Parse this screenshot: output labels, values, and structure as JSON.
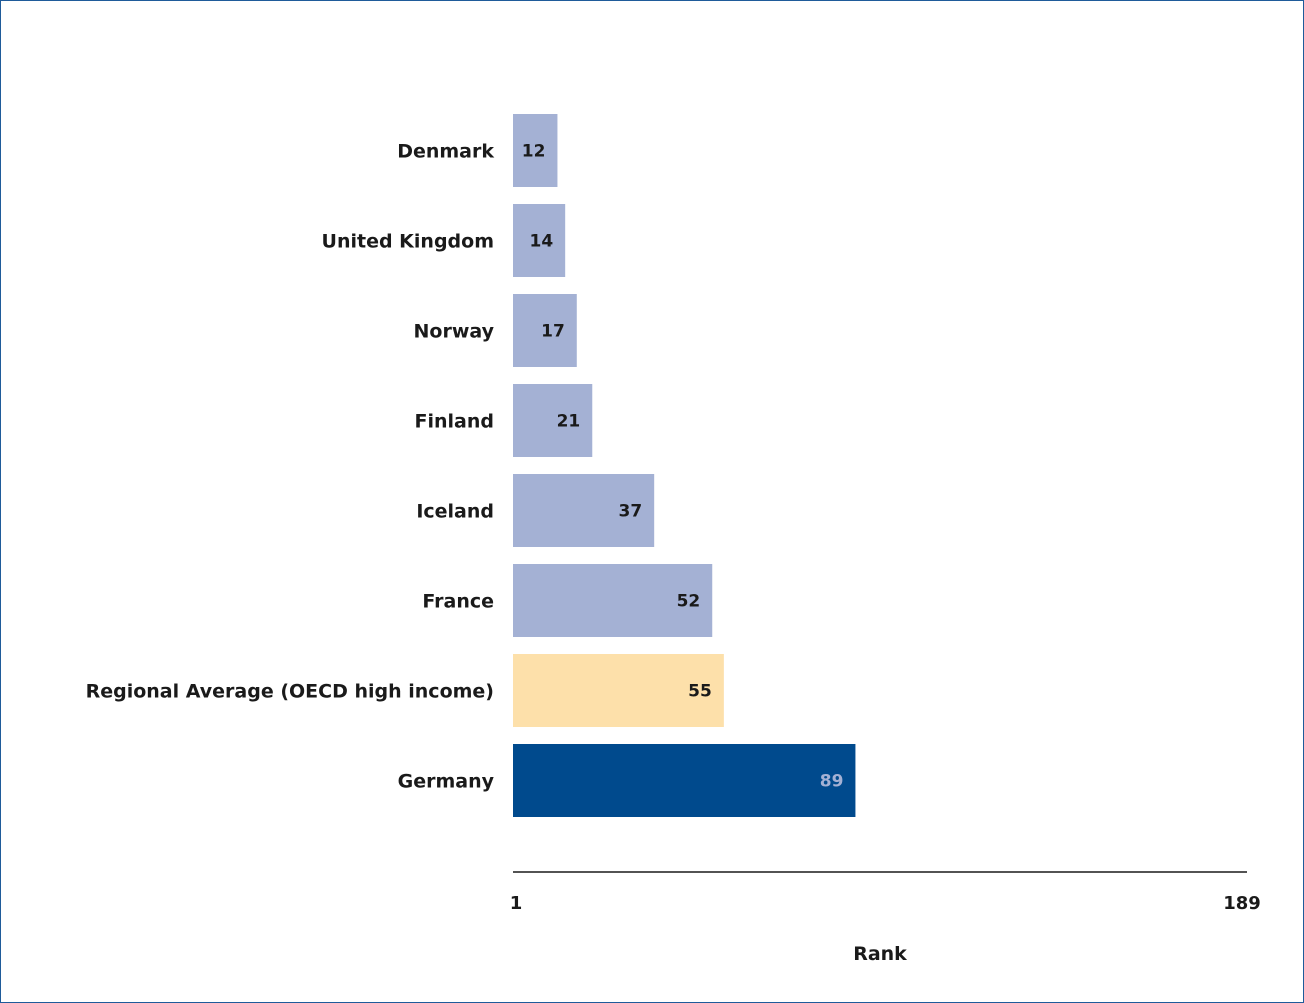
{
  "chart_data": {
    "type": "bar",
    "orientation": "horizontal",
    "categories": [
      "Denmark",
      "United Kingdom",
      "Norway",
      "Finland",
      "Iceland",
      "France",
      "Regional Average (OECD high income)",
      "Germany"
    ],
    "values": [
      12,
      14,
      17,
      21,
      37,
      52,
      55,
      89
    ],
    "bar_colors": [
      "#a4b1d4",
      "#a4b1d4",
      "#a4b1d4",
      "#a4b1d4",
      "#a4b1d4",
      "#a4b1d4",
      "#fde0aa",
      "#004a8d"
    ],
    "label_colors": [
      "#1a1a1a",
      "#1a1a1a",
      "#1a1a1a",
      "#1a1a1a",
      "#1a1a1a",
      "#1a1a1a",
      "#1a1a1a",
      "#a4b1d4"
    ],
    "xlim": [
      1,
      189
    ],
    "xticks": [
      "1",
      "189"
    ],
    "xlabel": "Rank",
    "grid": false
  }
}
